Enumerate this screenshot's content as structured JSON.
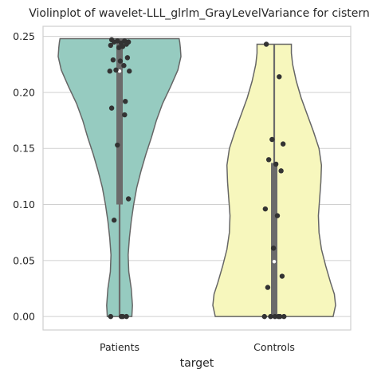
{
  "chart_data": {
    "type": "violin",
    "title": "Violinplot of wavelet-LLL_glrlm_GrayLevelVariance for cistern",
    "xlabel": "target",
    "ylabel": "",
    "categories": [
      "Patients",
      "Controls"
    ],
    "ylim": [
      -0.012,
      0.259
    ],
    "yticks": [
      0.0,
      0.05,
      0.1,
      0.15,
      0.2,
      0.25
    ],
    "ytick_labels": [
      "0.00",
      "0.05",
      "0.10",
      "0.15",
      "0.20",
      "0.25"
    ],
    "grid": "horizontal",
    "colors": {
      "Patients": "#96cbc0",
      "Controls": "#f7f7bd",
      "outline": "#666666",
      "box": "#6b6b6b",
      "points": "#333333",
      "grid": "#cfcfcf"
    },
    "series": [
      {
        "name": "Patients",
        "box": {
          "q1": 0.1,
          "median": 0.219,
          "q3": 0.248,
          "whisker_low": 0.0,
          "whisker_high": 0.248
        },
        "density": [
          [
            0.0,
            0.2
          ],
          [
            0.01,
            0.21
          ],
          [
            0.025,
            0.19
          ],
          [
            0.04,
            0.15
          ],
          [
            0.055,
            0.14
          ],
          [
            0.07,
            0.16
          ],
          [
            0.085,
            0.19
          ],
          [
            0.1,
            0.23
          ],
          [
            0.115,
            0.28
          ],
          [
            0.13,
            0.35
          ],
          [
            0.145,
            0.43
          ],
          [
            0.16,
            0.52
          ],
          [
            0.175,
            0.6
          ],
          [
            0.19,
            0.7
          ],
          [
            0.205,
            0.83
          ],
          [
            0.22,
            0.95
          ],
          [
            0.232,
            1.0
          ],
          [
            0.24,
            0.99
          ],
          [
            0.245,
            0.98
          ],
          [
            0.248,
            0.97
          ]
        ],
        "points": [
          0.247,
          0.246,
          0.246,
          0.245,
          0.245,
          0.244,
          0.243,
          0.242,
          0.241,
          0.24,
          0.231,
          0.229,
          0.228,
          0.224,
          0.22,
          0.219,
          0.219,
          0.192,
          0.186,
          0.18,
          0.153,
          0.105,
          0.086,
          0.0,
          0.0,
          0.0,
          0.0
        ]
      },
      {
        "name": "Controls",
        "box": {
          "q1": 0.0,
          "median": 0.049,
          "q3": 0.137,
          "whisker_low": 0.0,
          "whisker_high": 0.243
        },
        "density": [
          [
            0.0,
            0.96
          ],
          [
            0.01,
            1.0
          ],
          [
            0.02,
            0.98
          ],
          [
            0.03,
            0.92
          ],
          [
            0.045,
            0.84
          ],
          [
            0.06,
            0.77
          ],
          [
            0.075,
            0.73
          ],
          [
            0.09,
            0.72
          ],
          [
            0.105,
            0.74
          ],
          [
            0.12,
            0.76
          ],
          [
            0.135,
            0.77
          ],
          [
            0.15,
            0.73
          ],
          [
            0.165,
            0.64
          ],
          [
            0.18,
            0.54
          ],
          [
            0.195,
            0.44
          ],
          [
            0.21,
            0.36
          ],
          [
            0.225,
            0.3
          ],
          [
            0.235,
            0.28
          ],
          [
            0.243,
            0.28
          ]
        ],
        "points": [
          0.243,
          0.214,
          0.158,
          0.154,
          0.14,
          0.136,
          0.13,
          0.096,
          0.09,
          0.061,
          0.036,
          0.026,
          0.0,
          0.0,
          0.0,
          0.0,
          0.0,
          0.0
        ]
      }
    ]
  }
}
